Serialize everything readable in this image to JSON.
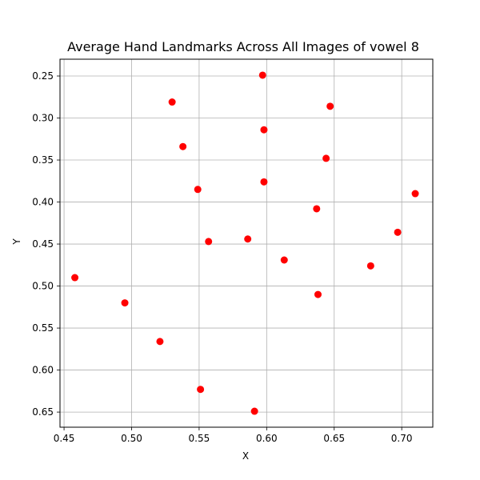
{
  "chart_data": {
    "type": "scatter",
    "title": "Average Hand Landmarks Across All Images of vowel 8",
    "xlabel": "X",
    "ylabel": "Y",
    "xlim": [
      0.447,
      0.723
    ],
    "ylim": [
      0.668,
      0.23
    ],
    "y_inverted": true,
    "grid": true,
    "xticks": [
      "0.45",
      "0.50",
      "0.55",
      "0.60",
      "0.65",
      "0.70"
    ],
    "xtick_values": [
      0.45,
      0.5,
      0.55,
      0.6,
      0.65,
      0.7
    ],
    "yticks": [
      "0.25",
      "0.30",
      "0.35",
      "0.40",
      "0.45",
      "0.50",
      "0.55",
      "0.60",
      "0.65"
    ],
    "ytick_values": [
      0.25,
      0.3,
      0.35,
      0.4,
      0.45,
      0.5,
      0.55,
      0.6,
      0.65
    ],
    "series": [
      {
        "color": "#ff0000",
        "x": [
          0.597,
          0.53,
          0.647,
          0.598,
          0.538,
          0.644,
          0.549,
          0.598,
          0.71,
          0.637,
          0.557,
          0.586,
          0.697,
          0.613,
          0.677,
          0.458,
          0.638,
          0.495,
          0.521,
          0.551,
          0.591
        ],
        "y": [
          0.249,
          0.281,
          0.286,
          0.314,
          0.334,
          0.348,
          0.385,
          0.376,
          0.39,
          0.408,
          0.447,
          0.444,
          0.436,
          0.469,
          0.476,
          0.49,
          0.51,
          0.52,
          0.566,
          0.623,
          0.649
        ]
      }
    ]
  }
}
